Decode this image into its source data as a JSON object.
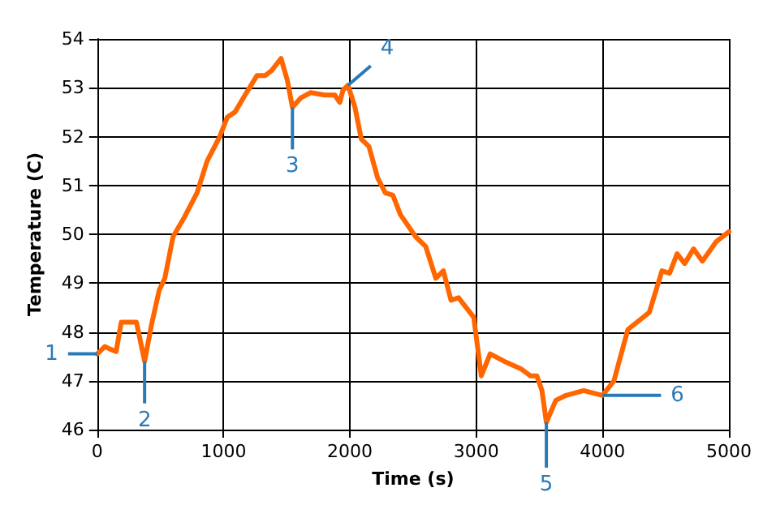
{
  "chart_data": {
    "type": "line",
    "xlabel": "Time (s)",
    "ylabel": "Temperature (C)",
    "x": [
      0,
      60,
      100,
      150,
      190,
      250,
      310,
      375,
      430,
      490,
      535,
      600,
      690,
      790,
      870,
      970,
      1030,
      1090,
      1170,
      1265,
      1330,
      1380,
      1455,
      1505,
      1545,
      1615,
      1690,
      1800,
      1880,
      1920,
      1945,
      1985,
      2040,
      2090,
      2150,
      2220,
      2280,
      2340,
      2400,
      2520,
      2600,
      2680,
      2740,
      2800,
      2860,
      2980,
      3040,
      3110,
      3220,
      3350,
      3430,
      3480,
      3520,
      3555,
      3630,
      3710,
      3850,
      4000,
      4090,
      4200,
      4370,
      4470,
      4530,
      4590,
      4650,
      4720,
      4790,
      4900,
      5000
    ],
    "series": [
      {
        "color": "#ff6600",
        "values": [
          47.55,
          47.7,
          47.65,
          47.6,
          48.2,
          48.2,
          48.2,
          47.4,
          48.15,
          48.85,
          49.1,
          49.95,
          50.35,
          50.85,
          51.5,
          52.0,
          52.4,
          52.5,
          52.85,
          53.25,
          53.25,
          53.35,
          53.6,
          53.15,
          52.6,
          52.8,
          52.9,
          52.85,
          52.85,
          52.7,
          52.95,
          53.05,
          52.6,
          51.95,
          51.8,
          51.15,
          50.85,
          50.8,
          50.4,
          49.95,
          49.75,
          49.1,
          49.25,
          48.65,
          48.7,
          48.3,
          47.1,
          47.55,
          47.4,
          47.25,
          47.1,
          47.1,
          46.8,
          46.15,
          46.6,
          46.7,
          46.8,
          46.7,
          47.0,
          48.05,
          48.4,
          49.25,
          49.2,
          49.6,
          49.4,
          49.7,
          49.45,
          49.85,
          50.05
        ]
      }
    ],
    "xlim": [
      0,
      5000
    ],
    "xticks": [
      0,
      1000,
      2000,
      3000,
      4000,
      5000
    ],
    "ylim": [
      46,
      54
    ],
    "yticks": [
      46,
      47,
      48,
      49,
      50,
      51,
      52,
      53,
      54
    ],
    "grid": true,
    "marker": "none",
    "line_style": "solid",
    "annotations": [
      {
        "text": "1",
        "x": 0,
        "y": 47.55
      },
      {
        "text": "2",
        "x": 375,
        "y": 47.4
      },
      {
        "text": "3",
        "x": 1545,
        "y": 52.6
      },
      {
        "text": "4",
        "x": 1985,
        "y": 53.05
      },
      {
        "text": "5",
        "x": 3555,
        "y": 46.15
      },
      {
        "text": "6",
        "x": 4000,
        "y": 46.7
      }
    ]
  }
}
